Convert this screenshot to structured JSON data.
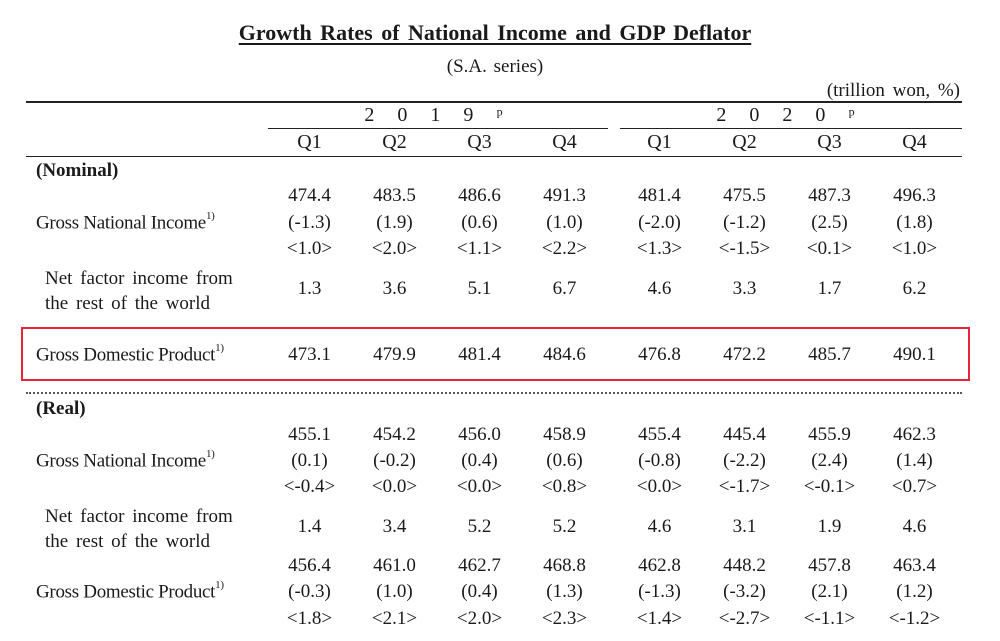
{
  "title": "Growth Rates of National Income and GDP Deflator",
  "subtitle": "(S.A. series)",
  "unit": "(trillion won, %)",
  "years": [
    "2 0 1 9 ᵖ",
    "2 0 2 0 ᵖ"
  ],
  "quarters": [
    "Q1",
    "Q2",
    "Q3",
    "Q4",
    "Q1",
    "Q2",
    "Q3",
    "Q4"
  ],
  "nominal": {
    "header": "(Nominal)",
    "gni": {
      "label": "Gross National Income",
      "footnote": "1)",
      "values": [
        "474.4",
        "483.5",
        "486.6",
        "491.3",
        "481.4",
        "475.5",
        "487.3",
        "496.3"
      ],
      "growth": [
        "(-1.3)",
        "(1.9)",
        "(0.6)",
        "(1.0)",
        "(-2.0)",
        "(-1.2)",
        "(2.5)",
        "(1.8)"
      ],
      "yoy": [
        "<1.0>",
        "<2.0>",
        "<1.1>",
        "<2.2>",
        "<1.3>",
        "<-1.5>",
        "<0.1>",
        "<1.0>"
      ]
    },
    "nfi": {
      "label_line1": "Net factor income from",
      "label_line2": "the rest of the world",
      "values": [
        "1.3",
        "3.6",
        "5.1",
        "6.7",
        "4.6",
        "3.3",
        "1.7",
        "6.2"
      ]
    },
    "gdp": {
      "label": "Gross Domestic Product",
      "footnote": "1)",
      "values": [
        "473.1",
        "479.9",
        "481.4",
        "484.6",
        "476.8",
        "472.2",
        "485.7",
        "490.1"
      ]
    }
  },
  "real": {
    "header": "(Real)",
    "gni": {
      "label": "Gross National Income",
      "footnote": "1)",
      "values": [
        "455.1",
        "454.2",
        "456.0",
        "458.9",
        "455.4",
        "445.4",
        "455.9",
        "462.3"
      ],
      "growth": [
        "(0.1)",
        "(-0.2)",
        "(0.4)",
        "(0.6)",
        "(-0.8)",
        "(-2.2)",
        "(2.4)",
        "(1.4)"
      ],
      "yoy": [
        "<-0.4>",
        "<0.0>",
        "<0.0>",
        "<0.8>",
        "<0.0>",
        "<-1.7>",
        "<-0.1>",
        "<0.7>"
      ]
    },
    "nfi": {
      "label_line1": "Net factor income from",
      "label_line2": "the rest of the world",
      "values": [
        "1.4",
        "3.4",
        "5.2",
        "5.2",
        "4.6",
        "3.1",
        "1.9",
        "4.6"
      ]
    },
    "gdp": {
      "label": "Gross Domestic Product",
      "footnote": "1)",
      "values": [
        "456.4",
        "461.0",
        "462.7",
        "468.8",
        "462.8",
        "448.2",
        "457.8",
        "463.4"
      ],
      "growth": [
        "(-0.3)",
        "(1.0)",
        "(0.4)",
        "(1.3)",
        "(-1.3)",
        "(-3.2)",
        "(2.1)",
        "(1.2)"
      ],
      "yoy": [
        "<1.8>",
        "<2.1>",
        "<2.0>",
        "<2.3>",
        "<1.4>",
        "<-2.7>",
        "<-1.1>",
        "<-1.2>"
      ]
    }
  },
  "highlight_color": "#e8233a"
}
